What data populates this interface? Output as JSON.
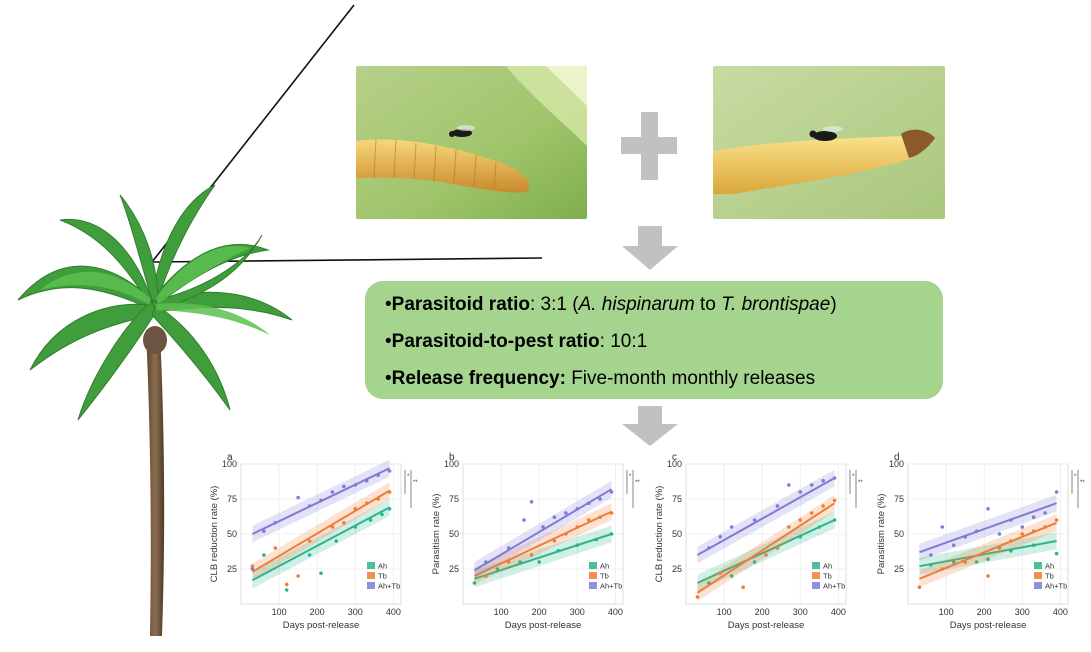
{
  "info_box": {
    "lines": [
      {
        "bullet": "•",
        "label": "Parasitoid ratio",
        "sep": ": ",
        "text_pre": "3:1 (",
        "species_a": "A. hispinarum",
        "text_mid": " to ",
        "species_b": "T. brontispae",
        "text_post": ")"
      },
      {
        "bullet": "•",
        "label": "Parasitoid-to-pest ratio",
        "sep": ": ",
        "text": "10:1"
      },
      {
        "bullet": "•",
        "label": "Release frequency:",
        "sep": " ",
        "text": "Five-month monthly releases"
      }
    ]
  },
  "colors": {
    "ah": "#2bb58a",
    "tb": "#f07d35",
    "ahtb": "#7e7cd4",
    "box": "#a5d48e",
    "arrow": "#c1c1c1"
  },
  "chart_data": [
    {
      "type": "scatter",
      "panel_label": "a",
      "xlabel": "Days post-release",
      "ylabel": "CLB reduction rate (%)",
      "xlim": [
        0,
        420
      ],
      "ylim": [
        0,
        100
      ],
      "xticks": [
        "100",
        "200",
        "300",
        "400"
      ],
      "yticks": [
        "25",
        "50",
        "75",
        "100"
      ],
      "legend": {
        "placement": "bottom-right",
        "entries": [
          "Ah",
          "Tb",
          "Ah+Tb"
        ]
      },
      "significance": [
        "*",
        "**"
      ],
      "series": [
        {
          "name": "Ah",
          "fit": [
            [
              30,
              17
            ],
            [
              390,
              69
            ]
          ],
          "points": [
            [
              60,
              35
            ],
            [
              120,
              10
            ],
            [
              180,
              35
            ],
            [
              210,
              22
            ],
            [
              250,
              45
            ],
            [
              300,
              55
            ],
            [
              340,
              60
            ],
            [
              370,
              64
            ],
            [
              390,
              68
            ]
          ]
        },
        {
          "name": "Tb",
          "fit": [
            [
              30,
              23
            ],
            [
              390,
              81
            ]
          ],
          "points": [
            [
              30,
              27
            ],
            [
              90,
              40
            ],
            [
              120,
              14
            ],
            [
              150,
              20
            ],
            [
              180,
              45
            ],
            [
              240,
              55
            ],
            [
              270,
              58
            ],
            [
              300,
              68
            ],
            [
              330,
              72
            ],
            [
              360,
              75
            ],
            [
              390,
              80
            ]
          ]
        },
        {
          "name": "Ah+Tb",
          "fit": [
            [
              30,
              50
            ],
            [
              390,
              97
            ]
          ],
          "points": [
            [
              30,
              25
            ],
            [
              60,
              52
            ],
            [
              90,
              58
            ],
            [
              150,
              76
            ],
            [
              180,
              70
            ],
            [
              210,
              74
            ],
            [
              240,
              80
            ],
            [
              270,
              84
            ],
            [
              300,
              85
            ],
            [
              330,
              88
            ],
            [
              360,
              92
            ],
            [
              390,
              95
            ]
          ]
        }
      ]
    },
    {
      "type": "scatter",
      "panel_label": "b",
      "xlabel": "Days post-release",
      "ylabel": "Parasitism rate (%)",
      "xlim": [
        0,
        420
      ],
      "ylim": [
        0,
        100
      ],
      "xticks": [
        "100",
        "200",
        "300",
        "400"
      ],
      "yticks": [
        "25",
        "50",
        "75",
        "100"
      ],
      "legend": {
        "placement": "bottom-right",
        "entries": [
          "Ah",
          "Tb",
          "Ah+Tb"
        ]
      },
      "significance": [
        "*",
        "**"
      ],
      "series": [
        {
          "name": "Ah",
          "fit": [
            [
              30,
              18
            ],
            [
              390,
              50
            ]
          ],
          "points": [
            [
              30,
              15
            ],
            [
              90,
              25
            ],
            [
              150,
              30
            ],
            [
              200,
              30
            ],
            [
              250,
              38
            ],
            [
              300,
              42
            ],
            [
              350,
              46
            ],
            [
              390,
              50
            ]
          ]
        },
        {
          "name": "Tb",
          "fit": [
            [
              30,
              20
            ],
            [
              390,
              66
            ]
          ],
          "points": [
            [
              60,
              20
            ],
            [
              120,
              30
            ],
            [
              180,
              35
            ],
            [
              240,
              45
            ],
            [
              270,
              50
            ],
            [
              300,
              55
            ],
            [
              330,
              60
            ],
            [
              360,
              62
            ],
            [
              390,
              65
            ]
          ]
        },
        {
          "name": "Ah+Tb",
          "fit": [
            [
              30,
              24
            ],
            [
              390,
              82
            ]
          ],
          "points": [
            [
              60,
              30
            ],
            [
              120,
              40
            ],
            [
              160,
              60
            ],
            [
              180,
              73
            ],
            [
              210,
              55
            ],
            [
              240,
              62
            ],
            [
              270,
              65
            ],
            [
              300,
              68
            ],
            [
              330,
              72
            ],
            [
              360,
              75
            ],
            [
              390,
              80
            ]
          ]
        }
      ]
    },
    {
      "type": "scatter",
      "panel_label": "c",
      "xlabel": "Days post-release",
      "ylabel": "CLB reduction rate (%)",
      "xlim": [
        0,
        420
      ],
      "ylim": [
        0,
        100
      ],
      "xticks": [
        "100",
        "200",
        "300",
        "400"
      ],
      "yticks": [
        "25",
        "50",
        "75",
        "100"
      ],
      "legend": {
        "placement": "bottom-right",
        "entries": [
          "Ah",
          "Tb",
          "Ah+Tb"
        ]
      },
      "significance": [
        "*",
        "**"
      ],
      "series": [
        {
          "name": "Ah",
          "fit": [
            [
              30,
              15
            ],
            [
              390,
              60
            ]
          ],
          "points": [
            [
              60,
              15
            ],
            [
              120,
              20
            ],
            [
              180,
              30
            ],
            [
              240,
              40
            ],
            [
              300,
              48
            ],
            [
              350,
              55
            ],
            [
              390,
              60
            ]
          ]
        },
        {
          "name": "Tb",
          "fit": [
            [
              30,
              8
            ],
            [
              390,
              72
            ]
          ],
          "points": [
            [
              30,
              5
            ],
            [
              90,
              22
            ],
            [
              150,
              12
            ],
            [
              210,
              35
            ],
            [
              240,
              40
            ],
            [
              270,
              55
            ],
            [
              300,
              60
            ],
            [
              330,
              65
            ],
            [
              360,
              70
            ],
            [
              390,
              74
            ]
          ]
        },
        {
          "name": "Ah+Tb",
          "fit": [
            [
              30,
              35
            ],
            [
              390,
              90
            ]
          ],
          "points": [
            [
              60,
              40
            ],
            [
              90,
              48
            ],
            [
              120,
              55
            ],
            [
              180,
              60
            ],
            [
              240,
              70
            ],
            [
              270,
              85
            ],
            [
              300,
              80
            ],
            [
              330,
              85
            ],
            [
              360,
              88
            ],
            [
              390,
              90
            ]
          ]
        }
      ]
    },
    {
      "type": "scatter",
      "panel_label": "d",
      "xlabel": "Days post-release",
      "ylabel": "Parasitism rate (%)",
      "xlim": [
        0,
        420
      ],
      "ylim": [
        0,
        100
      ],
      "xticks": [
        "100",
        "200",
        "300",
        "400"
      ],
      "yticks": [
        "25",
        "50",
        "75",
        "100"
      ],
      "legend": {
        "placement": "bottom-right",
        "entries": [
          "Ah",
          "Tb",
          "Ah+Tb"
        ]
      },
      "significance": [
        "*",
        "**"
      ],
      "series": [
        {
          "name": "Ah",
          "fit": [
            [
              30,
              27
            ],
            [
              390,
              45
            ]
          ],
          "points": [
            [
              60,
              28
            ],
            [
              120,
              30
            ],
            [
              180,
              30
            ],
            [
              210,
              32
            ],
            [
              270,
              38
            ],
            [
              330,
              42
            ],
            [
              390,
              36
            ]
          ]
        },
        {
          "name": "Tb",
          "fit": [
            [
              30,
              18
            ],
            [
              390,
              58
            ]
          ],
          "points": [
            [
              30,
              12
            ],
            [
              90,
              25
            ],
            [
              150,
              30
            ],
            [
              210,
              20
            ],
            [
              240,
              40
            ],
            [
              270,
              45
            ],
            [
              300,
              50
            ],
            [
              330,
              52
            ],
            [
              360,
              55
            ],
            [
              390,
              60
            ]
          ]
        },
        {
          "name": "Ah+Tb",
          "fit": [
            [
              30,
              37
            ],
            [
              390,
              72
            ]
          ],
          "points": [
            [
              60,
              35
            ],
            [
              90,
              55
            ],
            [
              120,
              42
            ],
            [
              150,
              48
            ],
            [
              180,
              52
            ],
            [
              210,
              68
            ],
            [
              240,
              50
            ],
            [
              270,
              60
            ],
            [
              300,
              55
            ],
            [
              330,
              62
            ],
            [
              360,
              65
            ],
            [
              390,
              80
            ]
          ]
        }
      ]
    }
  ]
}
